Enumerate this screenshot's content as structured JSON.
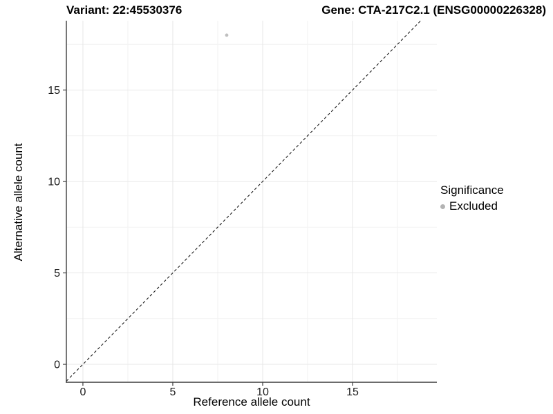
{
  "chart_data": {
    "type": "scatter",
    "titles": {
      "variant": "Variant: 22:45530376",
      "gene": "Gene: CTA-217C2.1 (ENSG00000226328)"
    },
    "xlabel": "Reference allele count",
    "ylabel": "Alternative allele count",
    "x_ticks": [
      0,
      5,
      10,
      15
    ],
    "y_ticks": [
      0,
      5,
      10,
      15
    ],
    "x_minor_ticks": [
      2.5,
      7.5,
      12.5,
      17.5
    ],
    "y_minor_ticks": [
      2.5,
      7.5,
      12.5,
      17.5
    ],
    "xlim": [
      -0.92,
      19.69
    ],
    "ylim": [
      -0.98,
      18.79
    ],
    "grid": true,
    "points": [
      {
        "x": 8,
        "y": 18,
        "significance": "Excluded"
      }
    ],
    "point_color": "#bfbfbf",
    "identity_line": {
      "type": "y=x",
      "style": "dashed",
      "color": "#1a1a1a"
    },
    "legend": {
      "position": "right",
      "title": "Significance",
      "entries": [
        {
          "label": "Excluded",
          "color": "#b3b3b3"
        }
      ]
    },
    "colors": {
      "axis_line": "#3c3c3c",
      "grid_major": "#e7e7e7",
      "grid_minor": "#f2f2f2",
      "tick_text": "#1a1a1a",
      "background": "#ffffff"
    }
  }
}
